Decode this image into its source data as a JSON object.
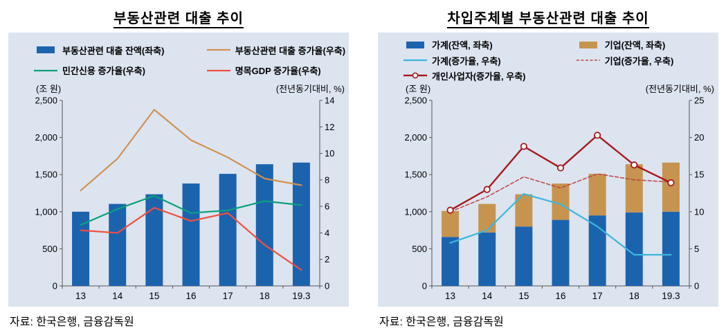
{
  "page": {
    "plot_background": "#dce4f0"
  },
  "chart_data": [
    {
      "type": "bar+line",
      "title": "부동산관련 대출 추이",
      "source": "자료: 한국은행, 금융감독원",
      "left_axis_unit": "(조 원)",
      "right_axis_unit": "(전년동기대비, %)",
      "categories": [
        "13",
        "14",
        "15",
        "16",
        "17",
        "18",
        "19.3"
      ],
      "left_axis": {
        "min": 0,
        "max": 2500,
        "step": 500,
        "ticks": [
          "0",
          "500",
          "1,000",
          "1,500",
          "2,000",
          "2,500"
        ]
      },
      "right_axis": {
        "min": 0,
        "max": 14,
        "step": 2,
        "ticks": [
          "0",
          "2",
          "4",
          "6",
          "8",
          "10",
          "12",
          "14"
        ]
      },
      "legend_position": "top",
      "series": [
        {
          "name": "부동산관련 대출 잔액(좌축)",
          "kind": "bar",
          "axis": "left",
          "color": "#1c63ae",
          "values": [
            1000,
            1105,
            1235,
            1380,
            1510,
            1640,
            1662
          ]
        },
        {
          "name": "부동산관련 대출 증가율(우축)",
          "kind": "line",
          "axis": "right",
          "color": "#d2914f",
          "values": [
            7.2,
            9.6,
            13.3,
            11.0,
            9.7,
            8.1,
            7.6
          ]
        },
        {
          "name": "민간신용 증가율(우축)",
          "kind": "line",
          "axis": "right",
          "color": "#0aa17b",
          "values": [
            4.6,
            5.8,
            6.8,
            5.5,
            5.7,
            6.4,
            6.1
          ]
        },
        {
          "name": "명목GDP 증가율(우축)",
          "kind": "line",
          "axis": "right",
          "color": "#f04f3e",
          "values": [
            4.2,
            4.0,
            5.9,
            4.9,
            5.5,
            3.1,
            1.2
          ]
        }
      ]
    },
    {
      "type": "stacked-bar+line",
      "title": "차입주체별 부동산관련 대출 추이",
      "source": "자료: 한국은행, 금융감독원",
      "left_axis_unit": "(조 원)",
      "right_axis_unit": "(전년동기대비, %)",
      "categories": [
        "13",
        "14",
        "15",
        "16",
        "17",
        "18",
        "19.3"
      ],
      "left_axis": {
        "min": 0,
        "max": 2500,
        "step": 500,
        "ticks": [
          "0",
          "500",
          "1,000",
          "1,500",
          "2,000",
          "2,500"
        ]
      },
      "right_axis": {
        "min": 0,
        "max": 25,
        "step": 5,
        "ticks": [
          "0",
          "5",
          "10",
          "15",
          "20",
          "25"
        ]
      },
      "legend_position": "top",
      "series": [
        {
          "name": "가계(잔액, 좌축)",
          "kind": "bar",
          "axis": "left",
          "color": "#1c63ae",
          "values": [
            660,
            720,
            800,
            890,
            950,
            990,
            1000
          ]
        },
        {
          "name": "기업(잔액, 좌축)",
          "kind": "bar",
          "axis": "left",
          "color": "#c6944f",
          "values": [
            350,
            385,
            435,
            490,
            560,
            650,
            662
          ]
        },
        {
          "name": "가계(증가율, 우축)",
          "kind": "line",
          "axis": "right",
          "color": "#3cb6dc",
          "values": [
            5.8,
            7.5,
            12.4,
            11.0,
            8.0,
            4.2,
            4.2
          ]
        },
        {
          "name": "기업(증가율, 우축)",
          "kind": "line",
          "axis": "right",
          "dash": true,
          "color": "#bf4342",
          "values": [
            10.0,
            12.0,
            14.7,
            13.2,
            15.1,
            14.3,
            14.0
          ]
        },
        {
          "name": "개인사업자(증가율, 우축)",
          "kind": "line",
          "axis": "right",
          "marker": true,
          "color": "#a8191c",
          "values": [
            10.2,
            13.0,
            18.8,
            15.9,
            20.3,
            16.3,
            13.9
          ]
        }
      ]
    }
  ]
}
